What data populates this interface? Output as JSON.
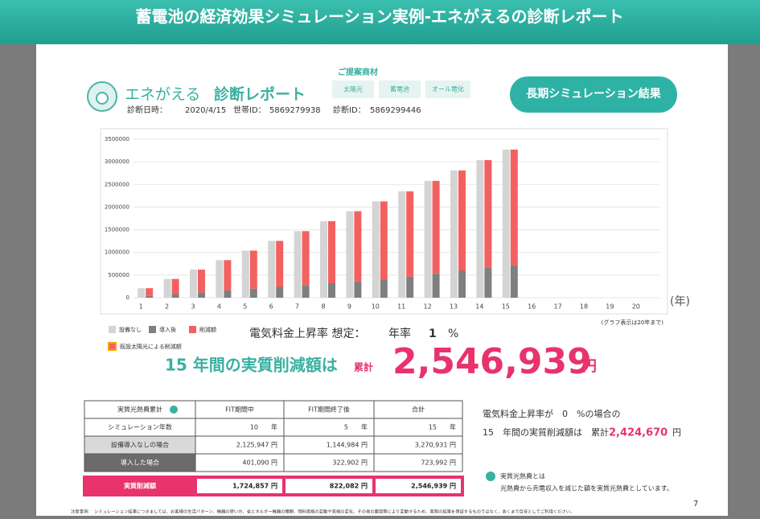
{
  "banner": {
    "title": "蓄電池の経済効果シミュレーション実例-エネがえるの診断レポート"
  },
  "header": {
    "brand": "エネがえる",
    "report": "診断レポート",
    "date_label": "診断日時：",
    "date": "2020/4/15",
    "household_label": "世帯ID：",
    "household_id": "5869279938",
    "diagnosis_label": "診断ID：",
    "diagnosis_id": "5869299446",
    "products_label": "ご提案商材",
    "products": [
      "太陽光",
      "蓄電池",
      "オール電化"
    ],
    "button": "長期シミュレーション結果"
  },
  "chart_data": {
    "type": "bar",
    "x_label": "(年)",
    "note": "(グラフ表示は20年まで)",
    "categories": [
      "1",
      "2",
      "3",
      "4",
      "5",
      "6",
      "7",
      "8",
      "9",
      "10",
      "11",
      "12",
      "13",
      "14",
      "15",
      "16",
      "17",
      "18",
      "19",
      "20"
    ],
    "series": [
      {
        "name": "設備なし",
        "color": "#d4d4d4",
        "values": [
          210000,
          415000,
          620000,
          830000,
          1040000,
          1255000,
          1470000,
          1690000,
          1910000,
          2125947,
          2350000,
          2580000,
          2810000,
          3040000,
          3270931,
          null,
          null,
          null,
          null,
          null
        ]
      },
      {
        "name": "導入後",
        "color": "#7f7f7f",
        "stack": "b",
        "values": [
          40000,
          80000,
          120000,
          160000,
          200000,
          240000,
          280000,
          320000,
          360000,
          401090,
          465000,
          530000,
          595000,
          660000,
          723992,
          null,
          null,
          null,
          null,
          null
        ]
      },
      {
        "name": "削減額",
        "color": "#f26160",
        "stack": "b",
        "values": [
          170000,
          335000,
          500000,
          670000,
          840000,
          1015000,
          1190000,
          1370000,
          1550000,
          1724857,
          1885000,
          2050000,
          2215000,
          2380000,
          2546939,
          null,
          null,
          null,
          null,
          null
        ]
      }
    ],
    "legend_extra": {
      "name": "既設太陽光による削減額",
      "color": "#f7a600"
    },
    "ylim": [
      0,
      3500000
    ],
    "yticks": [
      0,
      500000,
      1000000,
      1500000,
      2000000,
      2500000,
      3000000,
      3500000
    ],
    "grid": true
  },
  "summary": {
    "rate_label": "電気料金上昇率 想定：",
    "rate_prefix": "年率",
    "rate": "1",
    "rate_unit": "%",
    "headline": "15 年間の実質削減額は",
    "total_label": "累計",
    "total": "2,546,939",
    "unit": "円"
  },
  "table": {
    "header": [
      "実質光熱費累計",
      "FIT期間中",
      "FIT期間終了後",
      "合計"
    ],
    "rows": [
      [
        "シミュレーション年数",
        "10　　年",
        "5　　年",
        "15　　年"
      ],
      [
        "設備導入なしの場合",
        "2,125,947 円",
        "1,144,984 円",
        "3,270,931 円"
      ],
      [
        "導入した場合",
        "401,090 円",
        "322,902 円",
        "723,992 円"
      ]
    ],
    "total_row": [
      "実質削減額",
      "1,724,857 円",
      "822,082 円",
      "2,546,939 円"
    ]
  },
  "alt": {
    "line1": "電気料金上昇率が　0　%の場合の",
    "line2": "15　年間の実質削減額は　累計",
    "value": "2,424,670",
    "unit": "円"
  },
  "definition": {
    "title": "実質光熱費とは",
    "text": "光熱費から売電収入を減じた額を実質光熱費としています。"
  },
  "page_number": "7",
  "footnote": "注意事項：　シミュレーション結果につきましては、お客様の生活パターン、機器の使い方、省エネルギー機器の種類、燃料価格の変動や気候の変化、その他の要因等により変動するため、実際の結果を保証するものではなく、あくまで目安としてご利用ください。"
}
